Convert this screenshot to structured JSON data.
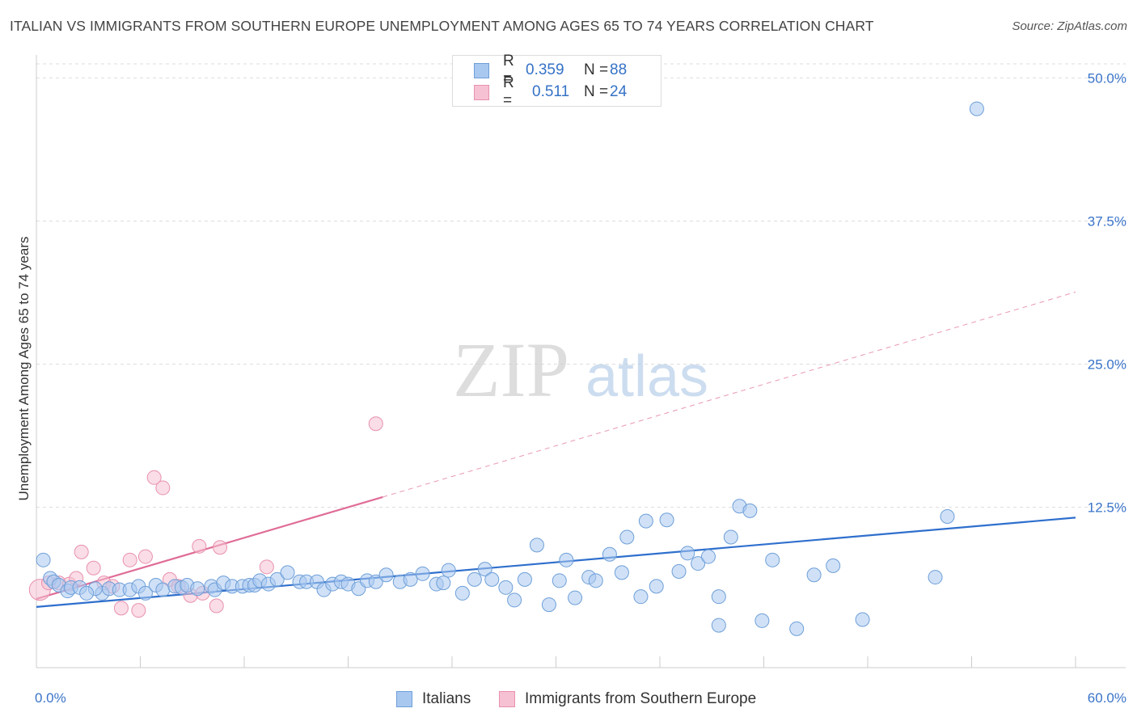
{
  "title": "ITALIAN VS IMMIGRANTS FROM SOUTHERN EUROPE UNEMPLOYMENT AMONG AGES 65 TO 74 YEARS CORRELATION CHART",
  "source": "Source: ZipAtlas.com",
  "watermark": {
    "zip": "ZIP",
    "atlas": "atlas"
  },
  "legend": {
    "italians": {
      "r_label": "R =",
      "r_value": "0.359",
      "n_label": "N =",
      "n_value": "88"
    },
    "immigrants": {
      "r_label": "R =",
      "r_value": "0.511",
      "n_label": "N =",
      "n_value": "24"
    }
  },
  "bottom_legend": {
    "italians": "Italians",
    "immigrants": "Immigrants from Southern Europe"
  },
  "colors": {
    "blue_fill": "#a9c8f0",
    "blue_stroke": "#6e9fd8",
    "blue_line": "#2f6fcd",
    "pink_fill": "#f6c1d2",
    "pink_stroke": "#e891ae",
    "pink_line": "#e06c97",
    "tick_text": "#3a74c9",
    "grid": "#dddddd"
  },
  "chart_data": {
    "type": "scatter",
    "title": "ITALIAN VS IMMIGRANTS FROM SOUTHERN EUROPE UNEMPLOYMENT AMONG AGES 65 TO 74 YEARS CORRELATION CHART",
    "xlabel": "",
    "ylabel": "Unemployment Among Ages 65 to 74 years",
    "xlim": [
      0,
      60
    ],
    "ylim": [
      -1.5,
      52
    ],
    "x_tick_labels": [
      {
        "value": 0,
        "label": "0.0%"
      },
      {
        "value": 60,
        "label": "60.0%"
      }
    ],
    "y_tick_labels": [
      {
        "value": 12.5,
        "label": "12.5%"
      },
      {
        "value": 25,
        "label": "25.0%"
      },
      {
        "value": 37.5,
        "label": "37.5%"
      },
      {
        "value": 50,
        "label": "50.0%"
      }
    ],
    "grid": true,
    "series": [
      {
        "name": "Italians",
        "color": "#a9c8f0",
        "points": [
          [
            0.4,
            7.9
          ],
          [
            0.8,
            6.3
          ],
          [
            1.0,
            6.0
          ],
          [
            1.3,
            5.7
          ],
          [
            1.8,
            5.2
          ],
          [
            2.0,
            5.5
          ],
          [
            2.5,
            5.5
          ],
          [
            3.8,
            5.0
          ],
          [
            3.4,
            5.4
          ],
          [
            4.2,
            5.4
          ],
          [
            4.8,
            5.3
          ],
          [
            5.4,
            5.3
          ],
          [
            5.9,
            5.6
          ],
          [
            6.3,
            5.0
          ],
          [
            6.9,
            5.7
          ],
          [
            7.3,
            5.3
          ],
          [
            8.0,
            5.6
          ],
          [
            8.4,
            5.5
          ],
          [
            8.7,
            5.7
          ],
          [
            9.3,
            5.4
          ],
          [
            10.1,
            5.6
          ],
          [
            10.3,
            5.3
          ],
          [
            10.8,
            5.9
          ],
          [
            11.3,
            5.6
          ],
          [
            11.9,
            5.6
          ],
          [
            12.3,
            5.7
          ],
          [
            12.6,
            5.7
          ],
          [
            12.9,
            6.1
          ],
          [
            13.4,
            5.8
          ],
          [
            13.9,
            6.2
          ],
          [
            14.5,
            6.8
          ],
          [
            15.2,
            6.0
          ],
          [
            15.6,
            6.0
          ],
          [
            16.2,
            6.0
          ],
          [
            16.6,
            5.3
          ],
          [
            17.1,
            5.8
          ],
          [
            17.6,
            6.0
          ],
          [
            18.0,
            5.8
          ],
          [
            18.6,
            5.4
          ],
          [
            19.1,
            6.1
          ],
          [
            19.6,
            6.0
          ],
          [
            20.2,
            6.6
          ],
          [
            21.0,
            6.0
          ],
          [
            21.6,
            6.2
          ],
          [
            22.3,
            6.7
          ],
          [
            23.1,
            5.8
          ],
          [
            23.5,
            5.9
          ],
          [
            23.8,
            7.0
          ],
          [
            24.6,
            5.0
          ],
          [
            25.3,
            6.2
          ],
          [
            25.9,
            7.1
          ],
          [
            26.3,
            6.2
          ],
          [
            27.1,
            5.5
          ],
          [
            27.6,
            4.4
          ],
          [
            28.2,
            6.2
          ],
          [
            28.9,
            9.2
          ],
          [
            29.6,
            4.0
          ],
          [
            30.2,
            6.1
          ],
          [
            30.6,
            7.9
          ],
          [
            31.1,
            4.6
          ],
          [
            31.9,
            6.4
          ],
          [
            32.3,
            6.1
          ],
          [
            33.1,
            8.4
          ],
          [
            33.8,
            6.8
          ],
          [
            34.1,
            9.9
          ],
          [
            34.9,
            4.7
          ],
          [
            35.2,
            11.3
          ],
          [
            35.8,
            5.6
          ],
          [
            36.4,
            11.4
          ],
          [
            37.1,
            6.9
          ],
          [
            37.6,
            8.5
          ],
          [
            38.2,
            7.6
          ],
          [
            38.8,
            8.2
          ],
          [
            39.4,
            4.7
          ],
          [
            40.1,
            9.9
          ],
          [
            40.6,
            12.6
          ],
          [
            41.2,
            12.2
          ],
          [
            41.9,
            2.6
          ],
          [
            42.5,
            7.9
          ],
          [
            43.9,
            1.9
          ],
          [
            44.9,
            6.6
          ],
          [
            46.0,
            7.4
          ],
          [
            47.7,
            2.7
          ],
          [
            51.9,
            6.4
          ],
          [
            52.6,
            11.7
          ],
          [
            54.3,
            47.3
          ],
          [
            39.4,
            2.2
          ],
          [
            2.9,
            5.0
          ]
        ]
      },
      {
        "name": "Immigrants from Southern Europe",
        "color": "#f6c1d2",
        "points": [
          [
            0.2,
            5.3
          ],
          [
            0.7,
            5.9
          ],
          [
            1.3,
            5.9
          ],
          [
            1.9,
            5.8
          ],
          [
            2.3,
            6.3
          ],
          [
            2.6,
            8.6
          ],
          [
            3.3,
            7.2
          ],
          [
            3.9,
            5.9
          ],
          [
            4.4,
            5.6
          ],
          [
            4.9,
            3.7
          ],
          [
            5.4,
            7.9
          ],
          [
            5.9,
            3.5
          ],
          [
            6.3,
            8.2
          ],
          [
            6.8,
            15.1
          ],
          [
            7.3,
            14.2
          ],
          [
            7.7,
            6.2
          ],
          [
            8.2,
            5.6
          ],
          [
            8.9,
            4.8
          ],
          [
            9.4,
            9.1
          ],
          [
            9.6,
            5.0
          ],
          [
            10.4,
            3.9
          ],
          [
            10.6,
            9.0
          ],
          [
            13.3,
            7.3
          ],
          [
            19.6,
            19.8
          ]
        ]
      }
    ],
    "trendlines": [
      {
        "name": "Italians",
        "x": [
          0,
          60
        ],
        "y": [
          3.8,
          11.6
        ],
        "style": "solid"
      },
      {
        "name": "Immigrants from Southern Europe",
        "x": [
          0,
          20
        ],
        "y": [
          4.5,
          13.4
        ],
        "style": "solid"
      },
      {
        "name": "Immigrants from Southern Europe extension",
        "x": [
          20,
          60
        ],
        "y": [
          13.4,
          31.3
        ],
        "style": "dashed"
      }
    ]
  }
}
